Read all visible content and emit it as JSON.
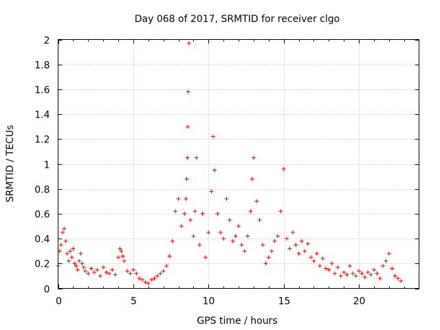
{
  "chart_data": {
    "type": "scatter",
    "title": "Day 068 of 2017, SRMTID for receiver clgo",
    "xlabel": "GPS time / hours",
    "ylabel": "SRMTID / TECUs",
    "xlim": [
      0,
      24
    ],
    "ylim": [
      0,
      2
    ],
    "xticks": [
      0,
      5,
      10,
      15,
      20
    ],
    "xtick_labels": [
      "0",
      "5",
      "10",
      "15",
      "20"
    ],
    "yticks": [
      0,
      0.2,
      0.4,
      0.6,
      0.8,
      1,
      1.2,
      1.4,
      1.6,
      1.8,
      2
    ],
    "ytick_labels": [
      "0",
      "0.2",
      "0.4",
      "0.6",
      "0.8",
      "1",
      "1.2",
      "1.4",
      "1.6",
      "1.8",
      "2"
    ],
    "grid": true,
    "marker": "+",
    "series_color": "#e60000",
    "series": [
      {
        "name": "SRMTID",
        "x": [
          0.0,
          0.1,
          0.2,
          0.3,
          0.4,
          0.5,
          0.6,
          0.7,
          0.8,
          0.9,
          1.0,
          1.1,
          1.2,
          1.3,
          1.4,
          1.5,
          1.6,
          1.7,
          1.8,
          2.0,
          2.2,
          2.4,
          2.6,
          2.8,
          3.0,
          3.2,
          3.4,
          3.6,
          3.8,
          4.0,
          4.1,
          4.2,
          4.3,
          4.4,
          4.6,
          4.8,
          5.0,
          5.2,
          5.4,
          5.6,
          5.8,
          6.0,
          6.2,
          6.4,
          6.6,
          6.8,
          7.0,
          7.2,
          7.4,
          7.6,
          7.8,
          8.0,
          8.2,
          8.4,
          8.5,
          8.55,
          8.6,
          8.62,
          8.65,
          8.7,
          8.8,
          9.0,
          9.1,
          9.2,
          9.4,
          9.6,
          9.8,
          10.0,
          10.2,
          10.3,
          10.4,
          10.6,
          10.8,
          11.0,
          11.2,
          11.4,
          11.6,
          11.8,
          12.0,
          12.2,
          12.4,
          12.6,
          12.8,
          12.9,
          13.0,
          13.2,
          13.4,
          13.6,
          13.8,
          14.0,
          14.2,
          14.4,
          14.6,
          14.8,
          15.0,
          15.2,
          15.4,
          15.6,
          15.8,
          16.0,
          16.2,
          16.4,
          16.6,
          16.8,
          17.0,
          17.2,
          17.4,
          17.6,
          17.8,
          18.0,
          18.2,
          18.4,
          18.6,
          18.8,
          19.0,
          19.2,
          19.4,
          19.6,
          19.8,
          20.0,
          20.2,
          20.4,
          20.6,
          20.8,
          21.0,
          21.2,
          21.4,
          21.6,
          21.8,
          22.0,
          22.2,
          22.4,
          22.6,
          22.8
        ],
        "y": [
          0.18,
          0.3,
          0.35,
          0.45,
          0.48,
          0.38,
          0.28,
          0.22,
          0.3,
          0.25,
          0.32,
          0.2,
          0.18,
          0.15,
          0.22,
          0.28,
          0.2,
          0.17,
          0.14,
          0.12,
          0.16,
          0.13,
          0.15,
          0.1,
          0.17,
          0.13,
          0.12,
          0.15,
          0.11,
          0.25,
          0.32,
          0.3,
          0.26,
          0.22,
          0.14,
          0.12,
          0.15,
          0.12,
          0.08,
          0.07,
          0.05,
          0.04,
          0.07,
          0.08,
          0.1,
          0.12,
          0.14,
          0.18,
          0.26,
          0.38,
          0.62,
          0.72,
          0.5,
          0.6,
          0.72,
          0.88,
          1.05,
          1.3,
          1.58,
          1.97,
          0.55,
          0.42,
          0.62,
          1.05,
          0.35,
          0.6,
          0.25,
          0.45,
          0.78,
          1.22,
          0.95,
          0.6,
          0.45,
          0.4,
          0.72,
          0.55,
          0.38,
          0.42,
          0.5,
          0.35,
          0.3,
          0.42,
          0.62,
          0.88,
          1.05,
          0.7,
          0.55,
          0.35,
          0.2,
          0.25,
          0.3,
          0.38,
          0.42,
          0.62,
          0.96,
          0.4,
          0.32,
          0.45,
          0.35,
          0.28,
          0.38,
          0.3,
          0.36,
          0.25,
          0.22,
          0.28,
          0.18,
          0.24,
          0.16,
          0.15,
          0.2,
          0.12,
          0.17,
          0.1,
          0.13,
          0.11,
          0.18,
          0.12,
          0.1,
          0.14,
          0.12,
          0.09,
          0.13,
          0.11,
          0.15,
          0.12,
          0.08,
          0.18,
          0.22,
          0.28,
          0.16,
          0.1,
          0.08,
          0.06
        ]
      }
    ]
  }
}
